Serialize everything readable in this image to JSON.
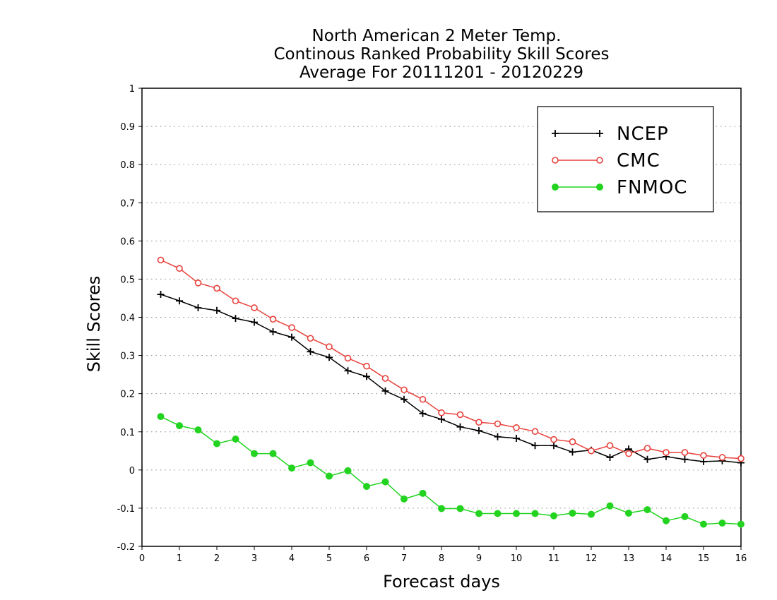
{
  "chart_data": {
    "type": "line",
    "title_lines": [
      "North American 2 Meter Temp.",
      "Continous Ranked Probability Skill Scores",
      "Average For 20111201 - 20120229"
    ],
    "xlabel": "Forecast days",
    "ylabel": "Skill Scores",
    "xlim": [
      0,
      16
    ],
    "ylim": [
      -0.2,
      1
    ],
    "x_ticks": [
      0,
      1,
      2,
      3,
      4,
      5,
      6,
      7,
      8,
      9,
      10,
      11,
      12,
      13,
      14,
      15,
      16
    ],
    "x_tick_labels": [
      "0",
      "1",
      "2",
      "3",
      "4",
      "5",
      "6",
      "7",
      "8",
      "9",
      "10",
      "11",
      "12",
      "13",
      "14",
      "15",
      "16"
    ],
    "y_ticks": [
      -0.2,
      -0.1,
      0,
      0.1,
      0.2,
      0.3,
      0.4,
      0.5,
      0.6,
      0.7,
      0.8,
      0.9,
      1
    ],
    "y_tick_labels": [
      "-0.2",
      "-0.1",
      "0",
      "0.1",
      "0.2",
      "0.3",
      "0.4",
      "0.5",
      "0.6",
      "0.7",
      "0.8",
      "0.9",
      "1"
    ],
    "grid": "horizontal dotted",
    "legend_position": "top-right",
    "x": [
      0.5,
      1,
      1.5,
      2,
      2.5,
      3,
      3.5,
      4,
      4.5,
      5,
      5.5,
      6,
      6.5,
      7,
      7.5,
      8,
      8.5,
      9,
      9.5,
      10,
      10.5,
      11,
      11.5,
      12,
      12.5,
      13,
      13.5,
      14,
      14.5,
      15,
      15.5,
      16
    ],
    "series": [
      {
        "name": "NCEP",
        "color": "#000000",
        "marker": "plus",
        "values": [
          0.46,
          0.443,
          0.425,
          0.418,
          0.397,
          0.387,
          0.362,
          0.348,
          0.31,
          0.295,
          0.26,
          0.245,
          0.207,
          0.185,
          0.148,
          0.133,
          0.113,
          0.103,
          0.087,
          0.083,
          0.064,
          0.064,
          0.047,
          0.052,
          0.033,
          0.055,
          0.028,
          0.035,
          0.028,
          0.022,
          0.024,
          0.019
        ]
      },
      {
        "name": "CMC",
        "color": "#e8413c",
        "marker": "open-circle",
        "values": [
          0.55,
          0.528,
          0.49,
          0.476,
          0.443,
          0.425,
          0.395,
          0.373,
          0.345,
          0.323,
          0.293,
          0.272,
          0.24,
          0.21,
          0.185,
          0.15,
          0.145,
          0.125,
          0.121,
          0.111,
          0.101,
          0.08,
          0.074,
          0.05,
          0.064,
          0.043,
          0.057,
          0.046,
          0.046,
          0.038,
          0.033,
          0.03
        ]
      },
      {
        "name": "FNMOC",
        "color": "#22d31f",
        "marker": "filled-circle",
        "values": [
          0.14,
          0.116,
          0.105,
          0.069,
          0.081,
          0.043,
          0.043,
          0.005,
          0.019,
          -0.016,
          -0.002,
          -0.043,
          -0.031,
          -0.076,
          -0.061,
          -0.101,
          -0.101,
          -0.114,
          -0.114,
          -0.114,
          -0.114,
          -0.12,
          -0.113,
          -0.116,
          -0.094,
          -0.113,
          -0.104,
          -0.133,
          -0.122,
          -0.142,
          -0.139,
          -0.142
        ]
      }
    ]
  }
}
